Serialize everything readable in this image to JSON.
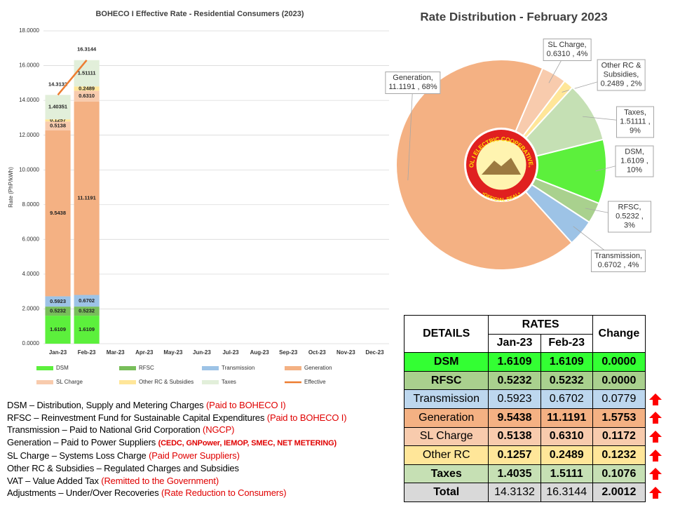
{
  "chart_data": [
    {
      "type": "bar",
      "stacked": true,
      "title": "BOHECO I Effective Rate - Residential  Consumers (2023)",
      "ylabel": "Rate (PhP/kWh)",
      "categories": [
        "Jan-23",
        "Feb-23",
        "Mar-23",
        "Apr-23",
        "May-23",
        "Jun-23",
        "Jul-23",
        "Aug-23",
        "Sep-23",
        "Oct-23",
        "Nov-23",
        "Dec-23"
      ],
      "ylim": [
        0,
        18
      ],
      "yticks": [
        {
          "value": 0,
          "label": "0.0000"
        },
        {
          "value": 2,
          "label": "2.0000"
        },
        {
          "value": 4,
          "label": "4.0000"
        },
        {
          "value": 6,
          "label": "6.0000"
        },
        {
          "value": 8,
          "label": "8.0000"
        },
        {
          "value": 10,
          "label": "10.0000"
        },
        {
          "value": 12,
          "label": "12.0000"
        },
        {
          "value": 14,
          "label": "14.0000"
        },
        {
          "value": 16,
          "label": "16.0000"
        },
        {
          "value": 18,
          "label": "18.0000"
        }
      ],
      "grid": true,
      "series": [
        {
          "name": "DSM",
          "color": "#5cf03c",
          "values": [
            1.6109,
            1.6109,
            null,
            null,
            null,
            null,
            null,
            null,
            null,
            null,
            null,
            null
          ]
        },
        {
          "name": "RFSC",
          "color": "#78be5a",
          "values": [
            0.5232,
            0.5232,
            null,
            null,
            null,
            null,
            null,
            null,
            null,
            null,
            null,
            null
          ]
        },
        {
          "name": "Transmission",
          "color": "#9dc3e6",
          "values": [
            0.5923,
            0.6702,
            null,
            null,
            null,
            null,
            null,
            null,
            null,
            null,
            null,
            null
          ]
        },
        {
          "name": "Generation",
          "color": "#f4b183",
          "values": [
            9.5438,
            11.1191,
            null,
            null,
            null,
            null,
            null,
            null,
            null,
            null,
            null,
            null
          ]
        },
        {
          "name": "SL Charge",
          "color": "#f8cbad",
          "values": [
            0.5138,
            0.631,
            null,
            null,
            null,
            null,
            null,
            null,
            null,
            null,
            null,
            null
          ],
          "value_labels": [
            "0.5138",
            "0.6310",
            null,
            null,
            null,
            null,
            null,
            null,
            null,
            null,
            null,
            null
          ]
        },
        {
          "name": "Other RC & Subsidies",
          "color": "#ffe699",
          "values": [
            0.1257,
            0.2489,
            null,
            null,
            null,
            null,
            null,
            null,
            null,
            null,
            null,
            null
          ]
        },
        {
          "name": "Taxes",
          "color": "#e2efda",
          "values": [
            1.40351,
            1.51111,
            null,
            null,
            null,
            null,
            null,
            null,
            null,
            null,
            null,
            null
          ]
        },
        {
          "name": "Effective",
          "type": "line",
          "color": "#ed7d31",
          "values": [
            14.3132,
            16.3144,
            null,
            null,
            null,
            null,
            null,
            null,
            null,
            null,
            null,
            null
          ]
        }
      ]
    },
    {
      "type": "pie",
      "donut": true,
      "title": "Rate Distribution - February 2023",
      "categories": [
        "DSM",
        "RFSC",
        "Transmission",
        "Generation",
        "SL Charge",
        "Other RC & Subsidies",
        "Taxes"
      ],
      "values": [
        1.6109,
        0.5232,
        0.6702,
        11.1191,
        0.631,
        0.2489,
        1.51111
      ],
      "value_labels": [
        "DSM, 1.6109 ,\n10%",
        "RFSC, 0.5232 ,\n3%",
        "Transmission,\n0.6702 , 4%",
        "Generation,\n11.1191 , 68%",
        "SL Charge,\n0.6310 , 4%",
        "Other RC &\nSubsidies,\n0.2489 , 2%",
        "Taxes, 1.51111 ,\n9%"
      ],
      "colors": [
        "#5cf03c",
        "#a9d18e",
        "#9dc3e6",
        "#f4b183",
        "#f8cbad",
        "#ffe699",
        "#c5e0b4"
      ]
    }
  ],
  "seal": {
    "name": "BOHOL I ELECTRIC COOPERATIVE, INC.",
    "motto": "•OFFICIAL SEAL•"
  },
  "table": {
    "header": {
      "details": "DETAILS",
      "rates": "RATES",
      "change": "Change",
      "months": [
        "Jan-23",
        "Feb-23"
      ]
    },
    "rows": [
      [
        "DSM",
        "1.6109",
        "1.6109",
        "0.0000"
      ],
      [
        "RFSC",
        "0.5232",
        "0.5232",
        "0.0000"
      ],
      [
        "Transmission",
        "0.5923",
        "0.6702",
        "0.0779"
      ],
      [
        "Generation",
        "9.5438",
        "11.1191",
        "1.5753"
      ],
      [
        "SL Charge",
        "0.5138",
        "0.6310",
        "0.1172"
      ],
      [
        "Other RC",
        "0.1257",
        "0.2489",
        "0.1232"
      ],
      [
        "Taxes",
        "1.4035",
        "1.5111",
        "0.1076"
      ],
      [
        "Total",
        "14.3132",
        "16.3144",
        "2.0012"
      ]
    ]
  },
  "notes": [
    {
      "text": "DSM – Distribution, Supply and Metering Charges ",
      "note": "(Paid to BOHECO I)"
    },
    {
      "text": "RFSC – Reinvestment Fund for Sustainable Capital Expenditures ",
      "note": "(Paid to BOHECO I)"
    },
    {
      "text": "Transmission – Paid to National Grid Corporation ",
      "note": "(NGCP)"
    },
    {
      "text": "Generation – Paid to Power Suppliers ",
      "note": "(CEDC, GNPower,  IEMOP, SMEC, NET METERING)"
    },
    {
      "text": "SL Charge – Systems Loss Charge ",
      "note": "(Paid Power Suppliers)"
    },
    {
      "text": "Other RC & Subsidies – Regulated Charges and Subsidies",
      "note": null
    },
    {
      "text": "VAT – Value Added Tax ",
      "note": "(Remitted to the Government)"
    },
    {
      "text": "Adjustments – Under/Over Recoveries ",
      "note": "(Rate Reduction to Consumers)"
    }
  ]
}
